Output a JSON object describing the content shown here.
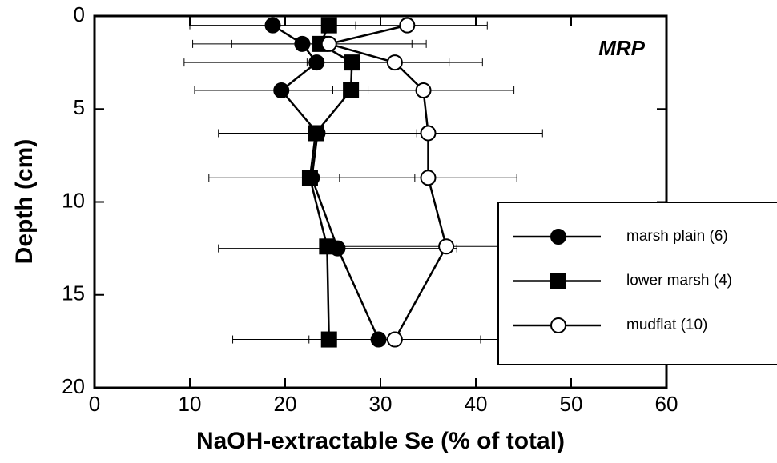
{
  "chart_data": {
    "type": "line",
    "xlabel": "NaOH-extractable Se (% of total)",
    "ylabel": "Depth (cm)",
    "annotation": "MRP",
    "xlim": [
      0,
      60
    ],
    "xticks": [
      0,
      10,
      20,
      30,
      40,
      50,
      60
    ],
    "ylim": [
      20,
      0
    ],
    "yticks": [
      0,
      5,
      10,
      15,
      20
    ],
    "legend": "right",
    "series": [
      {
        "name": "marsh plain (6)",
        "color": "#000000",
        "marker": "circle",
        "filled": true,
        "x": [
          18.7,
          21.8,
          23.3,
          19.6,
          23.4,
          22.8,
          25.5,
          29.8
        ],
        "y": [
          0.5,
          1.5,
          2.5,
          4,
          6.3,
          8.7,
          12.5,
          17.4
        ],
        "errors": [
          8.7,
          11.5,
          13.9,
          9.1,
          10.4,
          10.8,
          12.5,
          15.3
        ]
      },
      {
        "name": "lower marsh (4)",
        "color": "#000000",
        "marker": "square",
        "filled": true,
        "x": [
          24.6,
          23.7,
          27,
          26.9,
          23.2,
          22.6,
          24.4,
          24.6
        ],
        "y": [
          0.5,
          1.5,
          2.5,
          4,
          6.3,
          8.7,
          12.4,
          17.4
        ]
      },
      {
        "name": "mudflat (10)",
        "color": "#000000",
        "marker": "circle",
        "filled": false,
        "x": [
          32.8,
          24.6,
          31.5,
          34.5,
          35,
          35,
          36.9,
          31.5
        ],
        "y": [
          0.5,
          1.5,
          2.5,
          4,
          6.3,
          8.7,
          12.4,
          17.4
        ],
        "errors": [
          8.4,
          10.2,
          9.2,
          9.5,
          12,
          9.3,
          11,
          9
        ]
      }
    ]
  }
}
